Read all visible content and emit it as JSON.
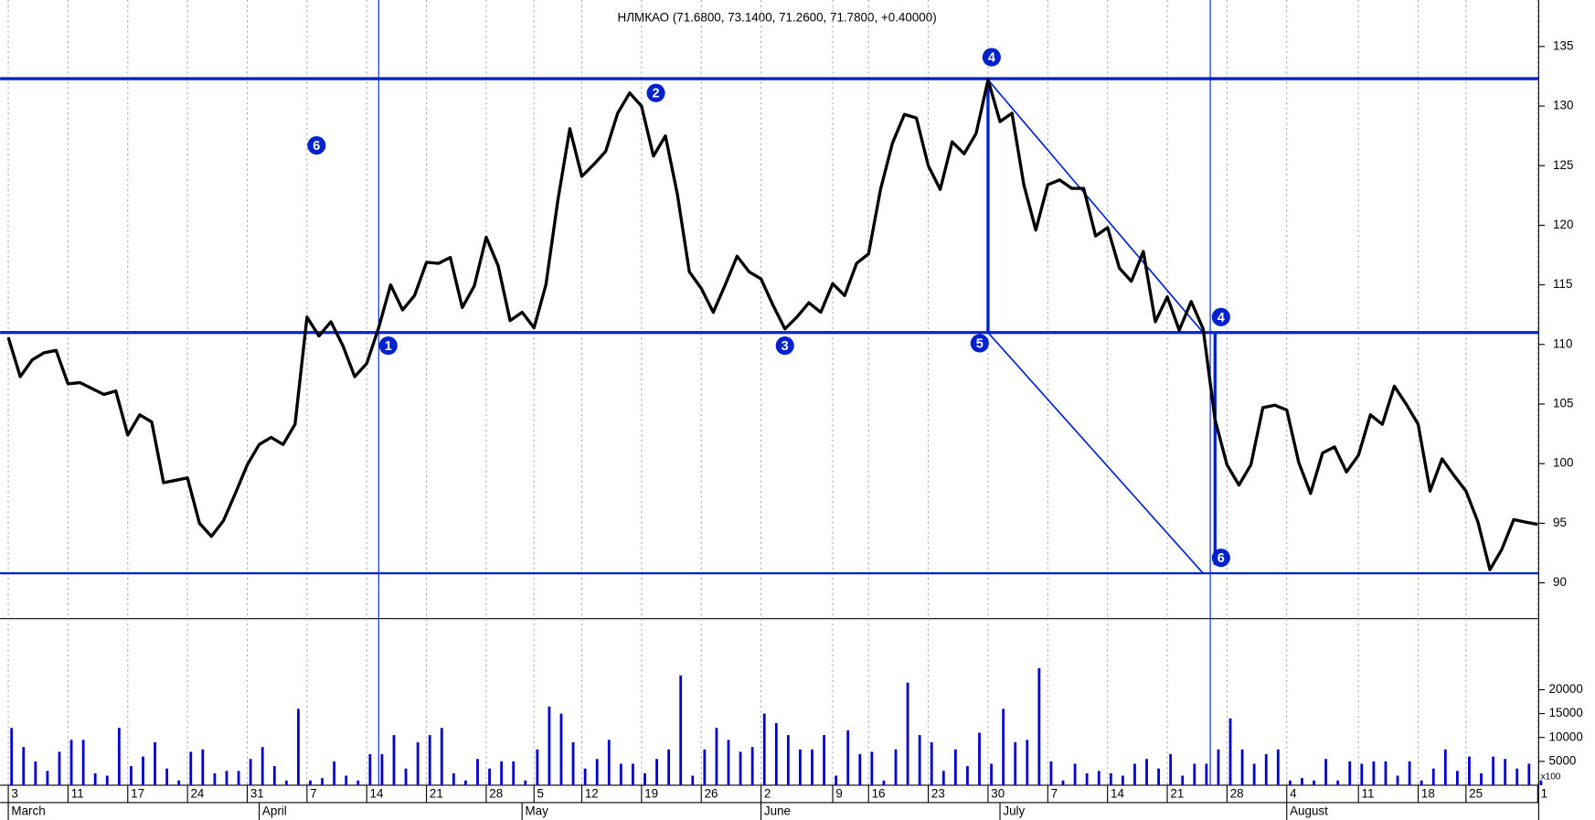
{
  "chart_data": {
    "type": "line",
    "title": "НЛМКАО (71.6800, 73.1400, 71.2600, 71.7800, +0.40000)",
    "color": "#000000",
    "values": [
      110.6,
      107.3,
      108.7,
      109.3,
      109.5,
      106.7,
      106.8,
      106.3,
      105.8,
      106.1,
      102.4,
      104.1,
      103.5,
      98.4,
      98.6,
      98.8,
      95.0,
      93.9,
      95.2,
      97.5,
      99.9,
      101.6,
      102.2,
      101.6,
      103.3,
      112.3,
      110.7,
      111.9,
      109.9,
      107.3,
      108.4,
      111.4,
      115.0,
      112.9,
      114.1,
      116.9,
      116.8,
      117.3,
      113.1,
      114.9,
      119.0,
      116.6,
      112.0,
      112.7,
      111.4,
      115.0,
      122.1,
      128.1,
      124.1,
      125.1,
      126.2,
      129.4,
      131.1,
      130.0,
      125.8,
      127.5,
      122.6,
      116.1,
      114.7,
      112.7,
      115.0,
      117.4,
      116.1,
      115.5,
      113.3,
      111.3,
      112.3,
      113.5,
      112.7,
      115.1,
      114.1,
      116.8,
      117.6,
      123.0,
      126.9,
      129.3,
      129.0,
      125.0,
      123.0,
      127.0,
      126.0,
      127.7,
      132.2,
      128.7,
      129.4,
      123.4,
      119.6,
      123.4,
      123.8,
      123.1,
      123.1,
      119.1,
      119.8,
      116.4,
      115.3,
      117.8,
      111.9,
      114.0,
      111.2,
      113.6,
      111.3,
      103.7,
      99.9,
      98.2,
      99.9,
      104.7,
      104.9,
      104.5,
      100.1,
      97.5,
      100.9,
      101.4,
      99.3,
      100.7,
      104.1,
      103.3,
      106.5,
      105.0,
      103.3,
      97.7,
      100.4,
      99.0,
      97.7,
      95.1,
      91.1,
      92.8,
      95.3,
      95.1,
      94.9
    ],
    "ylim": [
      87,
      138.9
    ],
    "yticks": [
      90,
      95,
      100,
      105,
      110,
      115,
      120,
      125,
      130,
      135
    ],
    "volume": {
      "color": "#0000cc",
      "unit_label": "x100",
      "values": [
        12000,
        8000,
        5000,
        3000,
        7000,
        9500,
        9500,
        2500,
        2000,
        12000,
        4000,
        6000,
        9000,
        3500,
        1000,
        7000,
        7500,
        2500,
        3000,
        3000,
        5500,
        8000,
        4000,
        1000,
        16000,
        1000,
        1500,
        5000,
        2000,
        1000,
        6500,
        6500,
        10500,
        3500,
        9000,
        10500,
        12000,
        2500,
        1000,
        5500,
        3500,
        5000,
        5000,
        1000,
        7500,
        16500,
        15000,
        9000,
        3500,
        5500,
        9500,
        4500,
        4500,
        2500,
        5500,
        7500,
        23000,
        2000,
        7500,
        12000,
        9500,
        7000,
        8000,
        15000,
        13000,
        10500,
        7500,
        7500,
        10500,
        2000,
        11500,
        6500,
        7000,
        1000,
        7500,
        21500,
        10500,
        9000,
        3000,
        7500,
        4000,
        11000,
        4500,
        16000,
        9000,
        9500,
        24500,
        5000,
        1000,
        4500,
        2500,
        3000,
        2500,
        2000,
        4500,
        5500,
        3500,
        6500,
        2000,
        4500,
        4500,
        7500,
        14000,
        7500,
        4500,
        6500,
        7500,
        1000,
        1500,
        1000,
        5500,
        1000,
        5000,
        4500,
        5000,
        5000,
        2000,
        5000,
        1000,
        3500,
        7500,
        3000,
        6000,
        2500,
        6000,
        5500,
        3500,
        4500,
        1000
      ],
      "ylim": [
        0,
        34900
      ],
      "yticks": [
        5000,
        10000,
        15000,
        20000
      ]
    },
    "xlim": [
      0,
      128
    ],
    "xticks": [
      {
        "value": 0,
        "label": "3"
      },
      {
        "value": 5,
        "label": "11"
      },
      {
        "value": 10,
        "label": "17"
      },
      {
        "value": 15,
        "label": "24"
      },
      {
        "value": 20,
        "label": "31"
      },
      {
        "value": 25,
        "label": "7"
      },
      {
        "value": 30,
        "label": "14"
      },
      {
        "value": 35,
        "label": "21"
      },
      {
        "value": 40,
        "label": "28"
      },
      {
        "value": 44,
        "label": "5"
      },
      {
        "value": 48,
        "label": "12"
      },
      {
        "value": 53,
        "label": "19"
      },
      {
        "value": 58,
        "label": "26"
      },
      {
        "value": 63,
        "label": "2"
      },
      {
        "value": 69,
        "label": "9"
      },
      {
        "value": 72,
        "label": "16"
      },
      {
        "value": 77,
        "label": "23"
      },
      {
        "value": 82,
        "label": "30"
      },
      {
        "value": 87,
        "label": "7"
      },
      {
        "value": 92,
        "label": "14"
      },
      {
        "value": 97,
        "label": "21"
      },
      {
        "value": 102,
        "label": "28"
      },
      {
        "value": 107,
        "label": "4"
      },
      {
        "value": 113,
        "label": "11"
      },
      {
        "value": 118,
        "label": "18"
      },
      {
        "value": 122,
        "label": "25"
      },
      {
        "value": 128,
        "label": "1"
      }
    ],
    "month_ticks": [
      {
        "value": 0,
        "label": "March"
      },
      {
        "value": 21,
        "label": "April"
      },
      {
        "value": 43,
        "label": "May"
      },
      {
        "value": 63,
        "label": "June"
      },
      {
        "value": 83,
        "label": "July"
      },
      {
        "value": 107,
        "label": "August"
      }
    ],
    "annotation_color": "#0022cc",
    "hlines": [
      132.3,
      111.0,
      90.8
    ],
    "vlines": [
      31.0,
      100.6
    ],
    "segments": [
      [
        82,
        132.2,
        100,
        111.0
      ],
      [
        82,
        111.0,
        100,
        90.8
      ],
      [
        82,
        132.2,
        82,
        111.0
      ],
      [
        101,
        111.0,
        101,
        91.5
      ]
    ],
    "markers": [
      {
        "label": "1",
        "x": 31.8,
        "y": 109.9
      },
      {
        "label": "2",
        "x": 54.2,
        "y": 131.1
      },
      {
        "label": "3",
        "x": 65,
        "y": 109.9
      },
      {
        "label": "4",
        "x": 82.3,
        "y": 134.1
      },
      {
        "label": "5",
        "x": 81.3,
        "y": 110.1
      },
      {
        "label": "4",
        "x": 101.5,
        "y": 112.3
      },
      {
        "label": "6",
        "x": 101.5,
        "y": 92.1
      },
      {
        "label": "6",
        "x": 25.8,
        "y": 126.7
      }
    ]
  }
}
